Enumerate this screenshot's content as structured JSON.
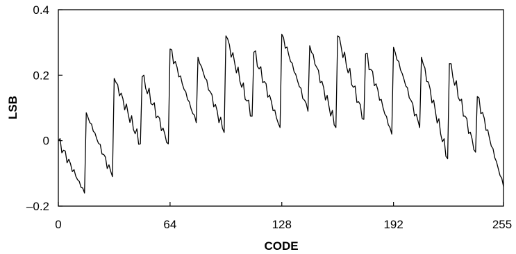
{
  "chart_data": {
    "type": "line",
    "title": "",
    "xlabel": "CODE",
    "ylabel": "LSB",
    "xlim": [
      0,
      255
    ],
    "ylim": [
      -0.2,
      0.4
    ],
    "x_ticks": [
      {
        "value": 0,
        "label": "0"
      },
      {
        "value": 64,
        "label": "64"
      },
      {
        "value": 128,
        "label": "128"
      },
      {
        "value": 192,
        "label": "192"
      },
      {
        "value": 255,
        "label": "255"
      }
    ],
    "y_ticks": [
      {
        "value": 0.4,
        "label": "0.4"
      },
      {
        "value": 0.2,
        "label": "0.2"
      },
      {
        "value": 0,
        "label": "0"
      },
      {
        "value": -0.2,
        "label": "–0.2"
      }
    ],
    "grid": false,
    "series": [
      {
        "color": "#000000",
        "segments": [
          {
            "x_start": 0,
            "x_end": 15,
            "y_start": 0.0,
            "y_end": -0.16
          },
          {
            "x_start": 16,
            "x_end": 31,
            "y_start": 0.085,
            "y_end": -0.11
          },
          {
            "x_start": 32,
            "x_end": 47,
            "y_start": 0.19,
            "y_end": -0.01
          },
          {
            "x_start": 48,
            "x_end": 63,
            "y_start": 0.195,
            "y_end": -0.01
          },
          {
            "x_start": 64,
            "x_end": 79,
            "y_start": 0.28,
            "y_end": 0.055
          },
          {
            "x_start": 80,
            "x_end": 95,
            "y_start": 0.255,
            "y_end": 0.025
          },
          {
            "x_start": 96,
            "x_end": 111,
            "y_start": 0.32,
            "y_end": 0.075
          },
          {
            "x_start": 112,
            "x_end": 127,
            "y_start": 0.27,
            "y_end": 0.04
          },
          {
            "x_start": 128,
            "x_end": 143,
            "y_start": 0.325,
            "y_end": 0.09
          },
          {
            "x_start": 144,
            "x_end": 159,
            "y_start": 0.29,
            "y_end": 0.04
          },
          {
            "x_start": 160,
            "x_end": 175,
            "y_start": 0.32,
            "y_end": 0.065
          },
          {
            "x_start": 176,
            "x_end": 191,
            "y_start": 0.265,
            "y_end": 0.02
          },
          {
            "x_start": 192,
            "x_end": 207,
            "y_start": 0.285,
            "y_end": 0.04
          },
          {
            "x_start": 208,
            "x_end": 223,
            "y_start": 0.255,
            "y_end": -0.055
          },
          {
            "x_start": 224,
            "x_end": 239,
            "y_start": 0.235,
            "y_end": -0.035
          },
          {
            "x_start": 240,
            "x_end": 255,
            "y_start": 0.135,
            "y_end": -0.14
          }
        ]
      }
    ]
  }
}
